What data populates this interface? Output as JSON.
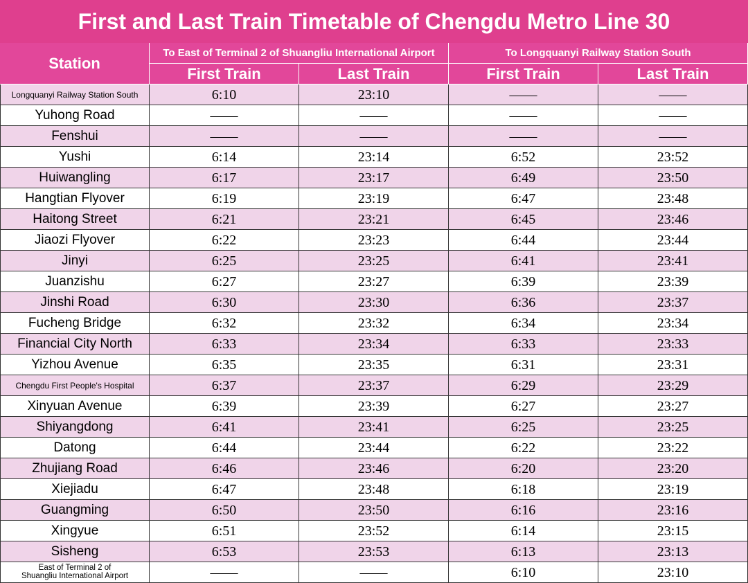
{
  "header": {
    "title": "First and Last Train Timetable of Chengdu Metro Line 30"
  },
  "table": {
    "station_header": "Station",
    "groups": [
      {
        "label": "To East of Terminal 2 of Shuangliu International Airport",
        "columns": [
          "First Train",
          "Last Train"
        ]
      },
      {
        "label": "To Longquanyi Railway Station South",
        "columns": [
          "First Train",
          "Last Train"
        ]
      }
    ],
    "rows": [
      [
        "Longquanyi Railway Station South",
        "6:10",
        "23:10",
        "——",
        "——"
      ],
      [
        "Yuhong Road",
        "——",
        "——",
        "——",
        "——"
      ],
      [
        "Fenshui",
        "——",
        "——",
        "——",
        "——"
      ],
      [
        "Yushi",
        "6:14",
        "23:14",
        "6:52",
        "23:52"
      ],
      [
        "Huiwangling",
        "6:17",
        "23:17",
        "6:49",
        "23:50"
      ],
      [
        "Hangtian Flyover",
        "6:19",
        "23:19",
        "6:47",
        "23:48"
      ],
      [
        "Haitong Street",
        "6:21",
        "23:21",
        "6:45",
        "23:46"
      ],
      [
        "Jiaozi Flyover",
        "6:22",
        "23:23",
        "6:44",
        "23:44"
      ],
      [
        "Jinyi",
        "6:25",
        "23:25",
        "6:41",
        "23:41"
      ],
      [
        "Juanzishu",
        "6:27",
        "23:27",
        "6:39",
        "23:39"
      ],
      [
        "Jinshi Road",
        "6:30",
        "23:30",
        "6:36",
        "23:37"
      ],
      [
        "Fucheng Bridge",
        "6:32",
        "23:32",
        "6:34",
        "23:34"
      ],
      [
        "Financial City North",
        "6:33",
        "23:34",
        "6:33",
        "23:33"
      ],
      [
        "Yizhou Avenue",
        "6:35",
        "23:35",
        "6:31",
        "23:31"
      ],
      [
        "Chengdu First People's Hospital",
        "6:37",
        "23:37",
        "6:29",
        "23:29"
      ],
      [
        "Xinyuan Avenue",
        "6:39",
        "23:39",
        "6:27",
        "23:27"
      ],
      [
        "Shiyangdong",
        "6:41",
        "23:41",
        "6:25",
        "23:25"
      ],
      [
        "Datong",
        "6:44",
        "23:44",
        "6:22",
        "23:22"
      ],
      [
        "Zhujiang Road",
        "6:46",
        "23:46",
        "6:20",
        "23:20"
      ],
      [
        "Xiejiadu",
        "6:47",
        "23:48",
        "6:18",
        "23:19"
      ],
      [
        "Guangming",
        "6:50",
        "23:50",
        "6:16",
        "23:16"
      ],
      [
        "Xingyue",
        "6:51",
        "23:52",
        "6:14",
        "23:15"
      ],
      [
        "Sisheng",
        "6:53",
        "23:53",
        "6:13",
        "23:13"
      ],
      [
        "East of Terminal 2 of\nShuangliu International Airport",
        "——",
        "——",
        "6:10",
        "23:10"
      ]
    ]
  }
}
